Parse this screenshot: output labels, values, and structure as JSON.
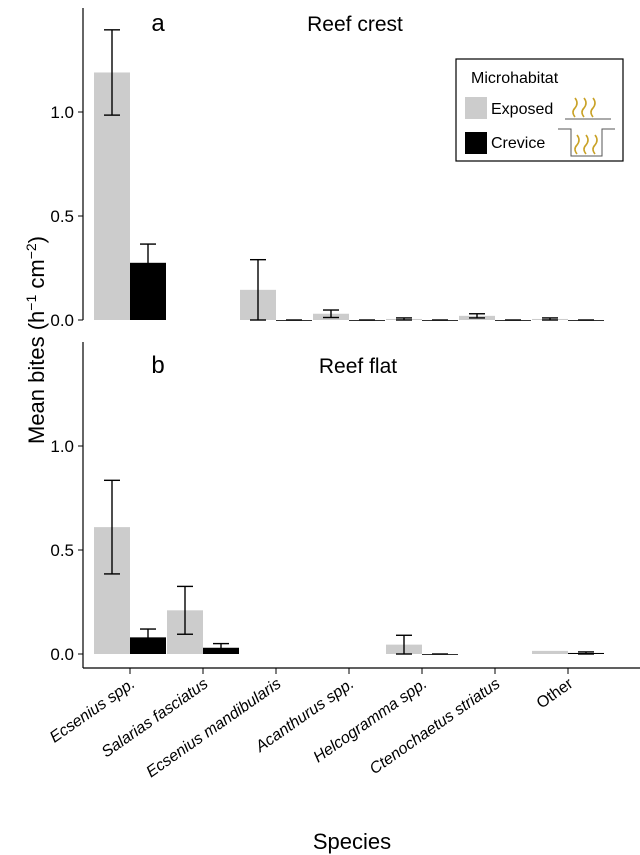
{
  "chart_data": {
    "type": "bar",
    "ylabel": "Mean bites (h",
    "ylabel_sup1": "−1",
    "ylabel_mid": " cm",
    "ylabel_sup2": "−2",
    "ylabel_end": ")",
    "xlabel": "Species",
    "ylim": [
      0,
      1.35
    ],
    "yticks": [
      "0.0",
      "0.5",
      "1.0"
    ],
    "ytick_values": [
      0,
      0.5,
      1.0
    ],
    "categories": [
      "Ecsenius spp.",
      "Salarias fasciatus",
      "Ecsenius mandibularis",
      "Acanthurus spp.",
      "Helcogramma spp.",
      "Ctenochaetus striatus",
      "Other"
    ],
    "italic_categories": [
      true,
      true,
      true,
      true,
      true,
      true,
      false
    ],
    "legend": {
      "title": "Microhabitat",
      "placement": "top-right",
      "entries": [
        {
          "label": "Exposed",
          "color": "#cccccc",
          "icon": "exposed-seaweed-icon"
        },
        {
          "label": "Crevice",
          "color": "#000000",
          "icon": "crevice-seaweed-icon"
        }
      ]
    },
    "panels": [
      {
        "letter": "a",
        "title": "Reef crest",
        "series": [
          {
            "name": "Exposed",
            "color": "#cccccc",
            "values": [
              1.19,
              null,
              0.145,
              0.03,
              0.005,
              0.02,
              0.005
            ],
            "err_low": [
              0.985,
              null,
              0.0,
              0.012,
              0.0,
              0.01,
              0.0
            ],
            "err_high": [
              1.395,
              null,
              0.29,
              0.048,
              0.01,
              0.03,
              0.01
            ]
          },
          {
            "name": "Crevice",
            "color": "#000000",
            "values": [
              0.275,
              null,
              0.0,
              0.0,
              0.0,
              0.0,
              0.0
            ],
            "err_low": [
              0.185,
              null,
              0.0,
              0.0,
              0.0,
              0.0,
              0.0
            ],
            "err_high": [
              0.365,
              null,
              0.0,
              0.0,
              0.0,
              0.0,
              0.0
            ]
          }
        ]
      },
      {
        "letter": "b",
        "title": "Reef flat",
        "series": [
          {
            "name": "Exposed",
            "color": "#cccccc",
            "values": [
              0.61,
              0.21,
              null,
              null,
              0.045,
              null,
              0.015
            ],
            "err_low": [
              0.385,
              0.095,
              null,
              null,
              0.0,
              null,
              0.015
            ],
            "err_high": [
              0.835,
              0.325,
              null,
              null,
              0.09,
              null,
              0.015
            ]
          },
          {
            "name": "Crevice",
            "color": "#000000",
            "values": [
              0.08,
              0.03,
              null,
              null,
              0.0,
              null,
              0.005
            ],
            "err_low": [
              0.04,
              0.01,
              null,
              null,
              0.0,
              null,
              0.0
            ],
            "err_high": [
              0.12,
              0.05,
              null,
              null,
              0.0,
              null,
              0.01
            ]
          }
        ]
      }
    ]
  }
}
